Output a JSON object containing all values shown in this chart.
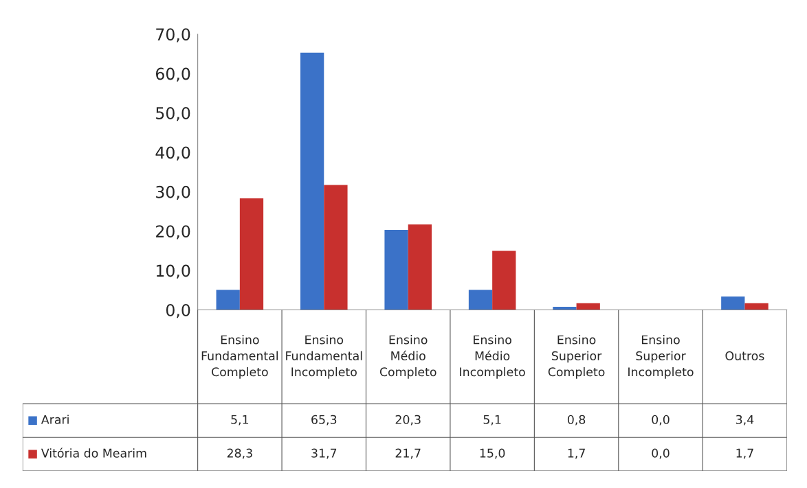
{
  "chart_data": {
    "type": "bar",
    "categories": [
      "Ensino Fundamental Completo",
      "Ensino Fundamental Incompleto",
      "Ensino Médio Completo",
      "Ensino Médio Incompleto",
      "Ensino Superior Completo",
      "Ensino Superior Incompleto",
      "Outros"
    ],
    "series": [
      {
        "name": "Arari",
        "color": "#3b72c8",
        "values": [
          5.1,
          65.3,
          20.3,
          5.1,
          0.8,
          0.0,
          3.4
        ]
      },
      {
        "name": "Vitória do Mearim",
        "color": "#c8302e",
        "values": [
          28.3,
          31.7,
          21.7,
          15.0,
          1.7,
          0.0,
          1.7
        ]
      }
    ],
    "ylim": [
      0,
      70
    ],
    "yticks": [
      {
        "value": 0,
        "label": "0,0"
      },
      {
        "value": 10,
        "label": "10,0"
      },
      {
        "value": 20,
        "label": "20,0"
      },
      {
        "value": 30,
        "label": "30,0"
      },
      {
        "value": 40,
        "label": "40,0"
      },
      {
        "value": 50,
        "label": "50,0"
      },
      {
        "value": 60,
        "label": "60,0"
      },
      {
        "value": 70,
        "label": "70,0"
      }
    ],
    "value_labels": [
      [
        "5,1",
        "65,3",
        "20,3",
        "5,1",
        "0,8",
        "0,0",
        "3,4"
      ],
      [
        "28,3",
        "31,7",
        "21,7",
        "15,0",
        "1,7",
        "0,0",
        "1,7"
      ]
    ],
    "grid": false,
    "legend": "bottom left"
  }
}
